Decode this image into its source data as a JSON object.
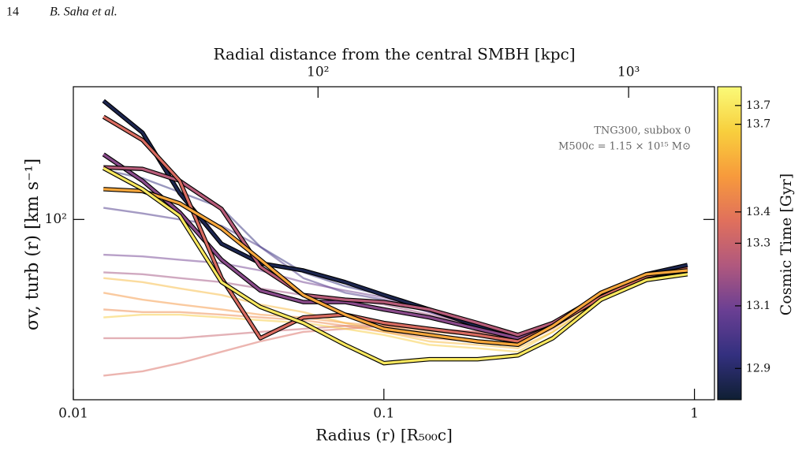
{
  "header": {
    "page": "14",
    "authors": "B. Saha et al."
  },
  "chart_data": {
    "type": "line",
    "xlabel": "Radius (r)  [R₅₀₀c]",
    "ylabel": "σv, turb (r)  [km s⁻¹]",
    "x2label": "Radial distance from the central SMBH  [kpc]",
    "colorbar_label": "Cosmic Time [Gyr]",
    "annotations": [
      "TNG300, subbox 0",
      "M500c = 1.15 × 10¹⁵ M⊙"
    ],
    "xscale": "log",
    "yscale": "log",
    "x2scale": "log",
    "xlim": [
      0.01,
      1.16
    ],
    "xticks": [
      0.01,
      0.1,
      1
    ],
    "ylim": [
      23,
      295
    ],
    "yticks": [
      {
        "value": 100,
        "label": "10²"
      }
    ],
    "x2lim": [
      16.3,
      1890
    ],
    "x2ticks": [
      {
        "value": 100,
        "label": "10²"
      },
      {
        "value": 1000,
        "label": "10³"
      }
    ],
    "clim": [
      12.8,
      13.8
    ],
    "cticks": [
      12.9,
      13.1,
      13.3,
      13.4,
      {
        "value": 13.68,
        "label": "13.7"
      },
      {
        "value": 13.74,
        "label": "13.7"
      }
    ],
    "colormap": [
      "#0f1f33",
      "#33307f",
      "#6a3f93",
      "#b0587e",
      "#e0705c",
      "#f79a3c",
      "#f8cf3d",
      "#fafa78"
    ],
    "x": [
      0.0125,
      0.0167,
      0.022,
      0.03,
      0.04,
      0.055,
      0.075,
      0.1,
      0.14,
      0.2,
      0.27,
      0.35,
      0.5,
      0.7,
      0.95
    ],
    "series": [
      {
        "time": 12.95,
        "outlined": false,
        "values": [
          150,
          140,
          125,
          110,
          80,
          65,
          58,
          54,
          48,
          43,
          39,
          42,
          54,
          63,
          68
        ]
      },
      {
        "time": 13.0,
        "outlined": false,
        "values": [
          110,
          105,
          100,
          95,
          80,
          62,
          55,
          52,
          47,
          42,
          39,
          42,
          54,
          63,
          67
        ]
      },
      {
        "time": 13.1,
        "outlined": false,
        "values": [
          75,
          74,
          72,
          70,
          66,
          60,
          56,
          53,
          47,
          42,
          39,
          42,
          54,
          63,
          67
        ]
      },
      {
        "time": 13.2,
        "outlined": false,
        "values": [
          65,
          64,
          62,
          60,
          57,
          54,
          52,
          50,
          46,
          42,
          39,
          42,
          54,
          63,
          67
        ]
      },
      {
        "time": 13.3,
        "outlined": false,
        "values": [
          38,
          38,
          38,
          39,
          40,
          41,
          42,
          42,
          41,
          40,
          38,
          42,
          53,
          63,
          67
        ]
      },
      {
        "time": 13.35,
        "outlined": false,
        "values": [
          28,
          29,
          31,
          34,
          37,
          40,
          41,
          42,
          41,
          40,
          38,
          42,
          53,
          63,
          67
        ]
      },
      {
        "time": 13.45,
        "outlined": false,
        "values": [
          48,
          47,
          47,
          46,
          45,
          44,
          42,
          40,
          38,
          37,
          36,
          41,
          53,
          63,
          66
        ]
      },
      {
        "time": 13.5,
        "outlined": false,
        "values": [
          55,
          52,
          50,
          48,
          46,
          45,
          43,
          42,
          40,
          39,
          38,
          42,
          53,
          63,
          66
        ]
      },
      {
        "time": 13.6,
        "outlined": false,
        "values": [
          62,
          60,
          57,
          54,
          50,
          47,
          43,
          40,
          37,
          36,
          35,
          40,
          52,
          62,
          65
        ]
      },
      {
        "time": 13.65,
        "outlined": false,
        "values": [
          45,
          46,
          46,
          45,
          44,
          43,
          41,
          39,
          36,
          35,
          34,
          40,
          52,
          62,
          65
        ]
      },
      {
        "time": 12.85,
        "outlined": true,
        "values": [
          263,
          203,
          124,
          82,
          70,
          66,
          60,
          54,
          48,
          42,
          39,
          42,
          54,
          64,
          69
        ]
      },
      {
        "time": 13.15,
        "outlined": true,
        "values": [
          170,
          137,
          106,
          72,
          56,
          51,
          51,
          48,
          45,
          41,
          38,
          43,
          52,
          63,
          66
        ]
      },
      {
        "time": 13.25,
        "outlined": true,
        "values": [
          153,
          151,
          137,
          109,
          68,
          54,
          52,
          51,
          48,
          43,
          39,
          43,
          54,
          64,
          66
        ]
      },
      {
        "time": 13.35,
        "outlined": true,
        "values": [
          231,
          191,
          137,
          62,
          38,
          45,
          46,
          43,
          41,
          39,
          37,
          42,
          53,
          63,
          67
        ]
      },
      {
        "time": 13.55,
        "outlined": true,
        "values": [
          128,
          126,
          114,
          93,
          72,
          54,
          46,
          41,
          39,
          37,
          36,
          42,
          55,
          64,
          66
        ]
      },
      {
        "time": 13.74,
        "outlined": true,
        "values": [
          152,
          128,
          103,
          60,
          49,
          43,
          36,
          31,
          32,
          32,
          33,
          38,
          52,
          61,
          64
        ]
      }
    ]
  }
}
